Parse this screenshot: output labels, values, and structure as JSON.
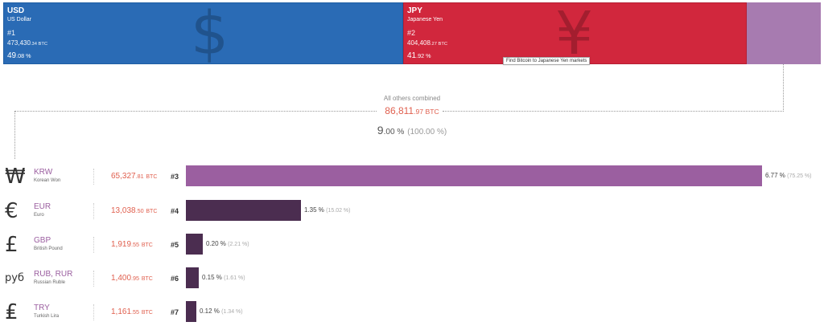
{
  "top_blocks": [
    {
      "code": "USD",
      "name": "US Dollar",
      "rank": "#1",
      "amount_int": "473,430",
      "amount_dec": ".34",
      "amount_unit": " BTC",
      "pct_int": "49",
      "pct_dec": ".08",
      "pct_unit": " %",
      "symbol": "$",
      "symbol_icon": "dollar-icon",
      "color": "#2a6bb5"
    },
    {
      "code": "JPY",
      "name": "Japanese Yen",
      "rank": "#2",
      "amount_int": "404,408",
      "amount_dec": ".27",
      "amount_unit": " BTC",
      "pct_int": "41",
      "pct_dec": ".92",
      "pct_unit": " %",
      "symbol": "¥",
      "symbol_icon": "yen-icon",
      "color": "#d1273d"
    }
  ],
  "tooltip": "Find Bitcoin to Japanese Yen markets",
  "others": {
    "title": "All others combined",
    "amount_int": "86,811",
    "amount_dec": ".97",
    "amount_unit": " BTC",
    "pct_int": "9",
    "pct_dec": ".00",
    "pct_unit": " %",
    "pct_paren": "(100.00 %)",
    "color": "#a77bb0"
  },
  "chart_data": {
    "type": "bar",
    "orientation": "horizontal",
    "unit": "BTC",
    "categories": [
      "KRW",
      "EUR",
      "GBP",
      "RUB, RUR",
      "TRY"
    ],
    "names": [
      "Korean Won",
      "Euro",
      "British Pound",
      "Russian Ruble",
      "Turkish Lira"
    ],
    "symbols": [
      "₩",
      "€",
      "£",
      "руб",
      "₤"
    ],
    "symbol_icons": [
      "won-icon",
      "euro-icon",
      "pound-icon",
      "ruble-icon",
      "lira-icon"
    ],
    "ranks": [
      "#3",
      "#4",
      "#5",
      "#6",
      "#7"
    ],
    "amounts_int": [
      "65,327",
      "13,038",
      "1,919",
      "1,400",
      "1,161"
    ],
    "amounts_dec": [
      ".81",
      ".50",
      ".55",
      ".95",
      ".55"
    ],
    "values": [
      6.77,
      1.35,
      0.2,
      0.15,
      0.12
    ],
    "percent_labels": [
      "6.77 %",
      "1.35 %",
      "0.20 %",
      "0.15 %",
      "0.12 %"
    ],
    "share_of_others": [
      "(75.25 %)",
      "(15.02 %)",
      "(2.21 %)",
      "(1.61 %)",
      "(1.34 %)"
    ],
    "bar_colors": [
      "#9b5fa0",
      "#4b2d50",
      "#4b2d50",
      "#4b2d50",
      "#4b2d50"
    ]
  }
}
